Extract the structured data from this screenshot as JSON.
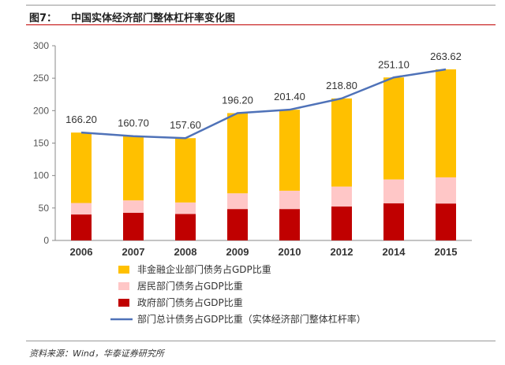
{
  "header": {
    "figure_label": "图7：",
    "title": "中国实体经济部门整体杠杆率变化图"
  },
  "source": "资料来源：Wind，华泰证券研究所",
  "chart_data": {
    "type": "bar",
    "stacked": true,
    "title": "中国实体经济部门整体杠杆率变化图",
    "categories": [
      "2006",
      "2007",
      "2008",
      "2009",
      "2010",
      "2012",
      "2014",
      "2015"
    ],
    "ylim": [
      0,
      300
    ],
    "yticks": [
      "0",
      "50",
      "100",
      "150",
      "200",
      "250",
      "300"
    ],
    "series": [
      {
        "name": "政府部门债务占GDP比重",
        "color": "#c00000",
        "values": [
          40,
          42.7,
          40.7,
          48.4,
          48.4,
          52.4,
          57.3,
          56.9
        ]
      },
      {
        "name": "居民部门债务占GDP比重",
        "color": "#ffc7c7",
        "values": [
          17.7,
          19,
          17.8,
          24.2,
          28.2,
          30.6,
          36.7,
          40.3
        ]
      },
      {
        "name": "非金融企业部门债务占GDP比重",
        "color": "#ffc000",
        "values": [
          108.5,
          99,
          99.1,
          123.6,
          124.8,
          135.8,
          157.1,
          166.4
        ]
      }
    ],
    "line": {
      "name": "部门总计债务占GDP比重（实体经济部门整体杠杆率）",
      "color": "#4f72b8",
      "values": [
        166.2,
        160.7,
        157.6,
        196.2,
        201.4,
        218.8,
        251.1,
        263.62
      ],
      "labels": [
        "166.20",
        "160.70",
        "157.60",
        "196.20",
        "201.40",
        "218.80",
        "251.10",
        "263.62"
      ]
    },
    "legend_order": [
      "非金融企业部门债务占GDP比重",
      "居民部门债务占GDP比重",
      "政府部门债务占GDP比重",
      "部门总计债务占GDP比重（实体经济部门整体杠杆率）"
    ],
    "legend_position": "bottom",
    "grid": false
  }
}
